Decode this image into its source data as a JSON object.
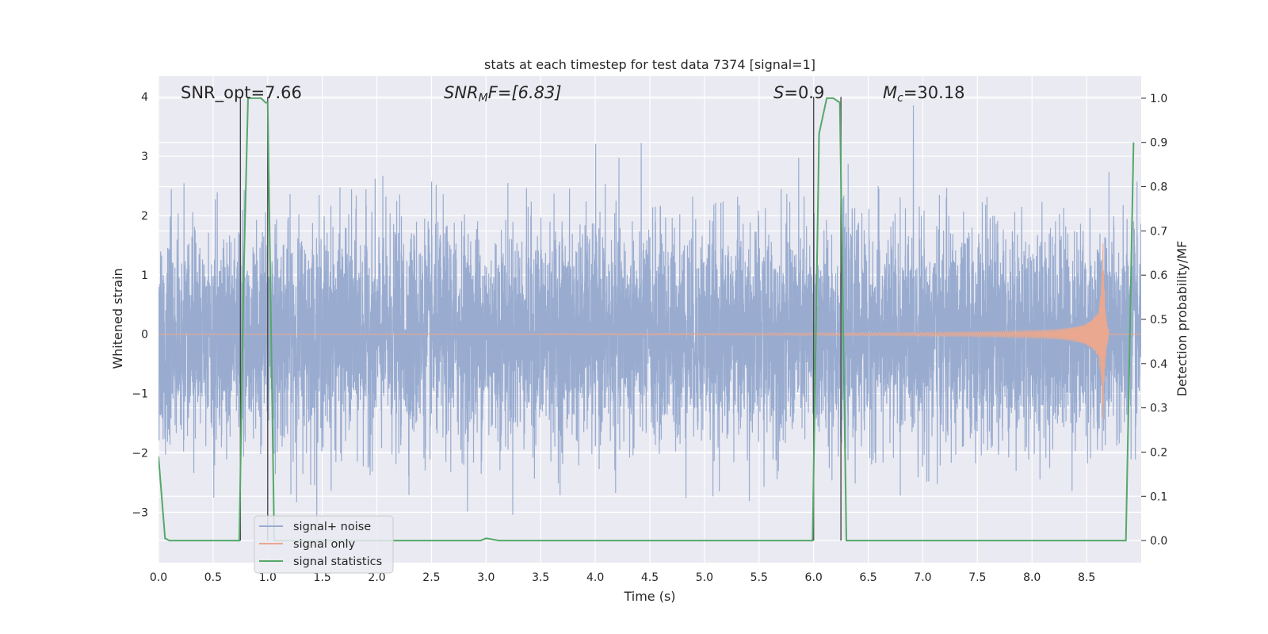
{
  "chart_data": {
    "type": "line",
    "title": "stats at each timestep for test data 7374 [signal=1]",
    "xlabel": "Time (s)",
    "ylabel_left": "Whitened strain",
    "ylabel_right": "Detection probability/MF",
    "xlim": [
      0,
      9.0
    ],
    "ylim_left": [
      -3.85,
      4.35
    ],
    "ylim_right": [
      -0.05,
      1.05
    ],
    "x_ticks": [
      "0.0",
      "0.5",
      "1.0",
      "1.5",
      "2.0",
      "2.5",
      "3.0",
      "3.5",
      "4.0",
      "4.5",
      "5.0",
      "5.5",
      "6.0",
      "6.5",
      "7.0",
      "7.5",
      "8.0",
      "8.5"
    ],
    "y_ticks_left": [
      "−3",
      "−2",
      "−1",
      "0",
      "1",
      "2",
      "3",
      "4"
    ],
    "y_ticks_right": [
      "0.0",
      "0.1",
      "0.2",
      "0.3",
      "0.4",
      "0.5",
      "0.6",
      "0.7",
      "0.8",
      "0.9",
      "1.0"
    ],
    "grid": true,
    "legend_position": "lower-left",
    "annotations": {
      "snr_opt": "SNR_opt=7.66",
      "snr_mf_base": "SNR",
      "snr_mf_sub": "M",
      "snr_mf_rest": "F=[6.83]",
      "s_var": "S",
      "s_rest": "=0.9",
      "mc_var": "M",
      "mc_sub": "c",
      "mc_rest": "=30.18"
    },
    "vertical_lines_x": [
      0.75,
      1.0,
      6.0,
      6.25
    ],
    "series": [
      {
        "name": "signal+ noise",
        "axis": "left",
        "color": "#99acd0",
        "description_of_values": "noise envelope",
        "noise_std": 0.9,
        "samples_per_second": 180
      },
      {
        "name": "signal only",
        "axis": "left",
        "color": "#e9a88f",
        "chirp_merger_time": 8.65,
        "chirp_peak_amplitude": 1.75
      },
      {
        "name": "signal statistics",
        "axis": "right",
        "color": "#55a868",
        "x": [
          0.0,
          0.06,
          0.1,
          0.12,
          0.74,
          0.78,
          0.82,
          0.87,
          0.94,
          0.98,
          1.0,
          1.06,
          2.95,
          3.0,
          3.12,
          5.99,
          6.05,
          6.12,
          6.18,
          6.24,
          6.3,
          6.36,
          6.44,
          8.8,
          8.86,
          8.93
        ],
        "y": [
          0.19,
          0.005,
          0.0,
          0.0,
          0.0,
          0.6,
          1.0,
          1.0,
          1.0,
          0.99,
          0.99,
          0.0,
          0.0,
          0.005,
          0.0,
          0.0,
          0.92,
          1.0,
          1.0,
          0.99,
          0.0,
          0.0,
          0.0,
          0.0,
          0.0,
          0.9
        ]
      }
    ]
  }
}
